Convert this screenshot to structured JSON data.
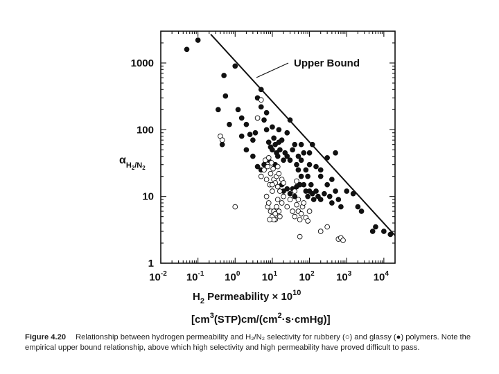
{
  "figure": {
    "number": "Figure 4.20",
    "caption": "Relationship between hydrogen permeability and H₂/N₂ selectivity for rubbery (○) and glassy (●) polymers. Note the empirical upper bound relationship, above which high selectivity and high permeability have proved difficult to pass."
  },
  "chart_data": {
    "type": "scatter",
    "xscale": "log",
    "yscale": "log",
    "xlim": [
      0.01,
      20000
    ],
    "ylim": [
      1,
      3000
    ],
    "x_ticks": [
      {
        "value": 0.01,
        "base": "10",
        "exp": "-2"
      },
      {
        "value": 0.1,
        "base": "10",
        "exp": "-1"
      },
      {
        "value": 1,
        "base": "10",
        "exp": "0"
      },
      {
        "value": 10,
        "base": "10",
        "exp": "1"
      },
      {
        "value": 100,
        "base": "10",
        "exp": "2"
      },
      {
        "value": 1000,
        "base": "10",
        "exp": "3"
      },
      {
        "value": 10000,
        "base": "10",
        "exp": "4"
      }
    ],
    "y_ticks": [
      {
        "value": 1,
        "label": "1"
      },
      {
        "value": 10,
        "label": "10"
      },
      {
        "value": 100,
        "label": "100"
      },
      {
        "value": 1000,
        "label": "1000"
      }
    ],
    "ylabel": {
      "main": "α",
      "sub1": "H",
      "sub2": "2",
      "sub3": "/N",
      "sub4": "2"
    },
    "xlabel": {
      "line1_a": "H",
      "line1_sub": "2",
      "line1_b": " Permeability × 10",
      "line1_sup": "10",
      "line2_a": "[cm",
      "line2_sup1": "3",
      "line2_b": "(STP)cm/(cm",
      "line2_sup2": "2",
      "line2_c": "·s·cmHg)]"
    },
    "annotation": "Upper Bound",
    "upper_bound": {
      "x": [
        0.22,
        20000
      ],
      "y": [
        2700,
        2.6
      ]
    },
    "series": [
      {
        "marker": "filled",
        "points": [
          [
            0.05,
            1600
          ],
          [
            0.1,
            2200
          ],
          [
            0.5,
            650
          ],
          [
            0.55,
            320
          ],
          [
            1,
            900
          ],
          [
            0.35,
            200
          ],
          [
            0.45,
            60
          ],
          [
            0.7,
            120
          ],
          [
            1.2,
            200
          ],
          [
            1.5,
            150
          ],
          [
            2,
            120
          ],
          [
            2.5,
            85
          ],
          [
            3,
            70
          ],
          [
            4,
            300
          ],
          [
            5,
            400
          ],
          [
            5,
            220
          ],
          [
            3.5,
            90
          ],
          [
            1.5,
            80
          ],
          [
            2,
            50
          ],
          [
            3,
            40
          ],
          [
            6,
            140
          ],
          [
            7,
            100
          ],
          [
            8,
            65
          ],
          [
            9,
            55
          ],
          [
            10,
            50
          ],
          [
            11,
            75
          ],
          [
            12,
            60
          ],
          [
            13,
            45
          ],
          [
            14,
            40
          ],
          [
            15,
            65
          ],
          [
            16,
            50
          ],
          [
            18,
            70
          ],
          [
            20,
            35
          ],
          [
            12,
            30
          ],
          [
            8,
            35
          ],
          [
            6,
            30
          ],
          [
            5,
            25
          ],
          [
            4,
            28
          ],
          [
            22,
            45
          ],
          [
            25,
            40
          ],
          [
            30,
            35
          ],
          [
            35,
            50
          ],
          [
            40,
            60
          ],
          [
            45,
            30
          ],
          [
            50,
            25
          ],
          [
            60,
            20
          ],
          [
            70,
            15
          ],
          [
            80,
            12
          ],
          [
            90,
            10
          ],
          [
            100,
            12
          ],
          [
            110,
            15
          ],
          [
            120,
            11
          ],
          [
            130,
            9
          ],
          [
            150,
            12
          ],
          [
            170,
            10
          ],
          [
            200,
            9
          ],
          [
            250,
            11
          ],
          [
            300,
            15
          ],
          [
            350,
            10
          ],
          [
            400,
            8
          ],
          [
            500,
            12
          ],
          [
            600,
            9
          ],
          [
            700,
            7
          ],
          [
            1000,
            12
          ],
          [
            1500,
            11
          ],
          [
            2000,
            7
          ],
          [
            2500,
            6
          ],
          [
            5000,
            3
          ],
          [
            6000,
            3.5
          ],
          [
            10000,
            3
          ],
          [
            15000,
            2.7
          ],
          [
            50,
            40
          ],
          [
            60,
            35
          ],
          [
            80,
            25
          ],
          [
            100,
            30
          ],
          [
            150,
            28
          ],
          [
            200,
            20
          ],
          [
            300,
            38
          ],
          [
            400,
            18
          ],
          [
            500,
            45
          ],
          [
            120,
            60
          ],
          [
            200,
            25
          ],
          [
            20,
            12
          ],
          [
            25,
            13
          ],
          [
            30,
            11
          ],
          [
            40,
            10
          ],
          [
            18,
            15
          ],
          [
            10,
            110
          ],
          [
            7,
            180
          ],
          [
            30,
            140
          ],
          [
            25,
            90
          ],
          [
            15,
            100
          ],
          [
            60,
            60
          ],
          [
            70,
            45
          ],
          [
            100,
            45
          ],
          [
            90,
            20
          ],
          [
            55,
            15
          ],
          [
            45,
            14
          ],
          [
            35,
            13
          ]
        ]
      },
      {
        "marker": "open",
        "points": [
          [
            0.4,
            80
          ],
          [
            0.45,
            70
          ],
          [
            1,
            7
          ],
          [
            5,
            280
          ],
          [
            4,
            150
          ],
          [
            5,
            20
          ],
          [
            6,
            25
          ],
          [
            6.5,
            35
          ],
          [
            7,
            18
          ],
          [
            7.5,
            28
          ],
          [
            8,
            38
          ],
          [
            8.5,
            15
          ],
          [
            9,
            22
          ],
          [
            9.5,
            32
          ],
          [
            10,
            12
          ],
          [
            10.5,
            26
          ],
          [
            11,
            18
          ],
          [
            12,
            16
          ],
          [
            13,
            20
          ],
          [
            14,
            14
          ],
          [
            15,
            22
          ],
          [
            7,
            10
          ],
          [
            7.5,
            7
          ],
          [
            8,
            8
          ],
          [
            9,
            6
          ],
          [
            10,
            5
          ],
          [
            11,
            6
          ],
          [
            12,
            4.5
          ],
          [
            13,
            7
          ],
          [
            14,
            9
          ],
          [
            15,
            6
          ],
          [
            16,
            5
          ],
          [
            18,
            8
          ],
          [
            20,
            10
          ],
          [
            25,
            7
          ],
          [
            30,
            9
          ],
          [
            35,
            6
          ],
          [
            40,
            5
          ],
          [
            45,
            7.5
          ],
          [
            50,
            6
          ],
          [
            55,
            4.5
          ],
          [
            60,
            5.5
          ],
          [
            65,
            7
          ],
          [
            70,
            8
          ],
          [
            80,
            4.8
          ],
          [
            90,
            4.3
          ],
          [
            100,
            6
          ],
          [
            55,
            2.5
          ],
          [
            200,
            3
          ],
          [
            300,
            3.5
          ],
          [
            600,
            2.3
          ],
          [
            700,
            2.4
          ],
          [
            800,
            2.2
          ],
          [
            11,
            4.5
          ],
          [
            12,
            5.5
          ],
          [
            8.5,
            4.5
          ],
          [
            16,
            12
          ],
          [
            18,
            18
          ],
          [
            10,
            15
          ],
          [
            14,
            28
          ],
          [
            20,
            16
          ],
          [
            40,
            12
          ],
          [
            45,
            17
          ],
          [
            50,
            9
          ]
        ]
      }
    ]
  }
}
